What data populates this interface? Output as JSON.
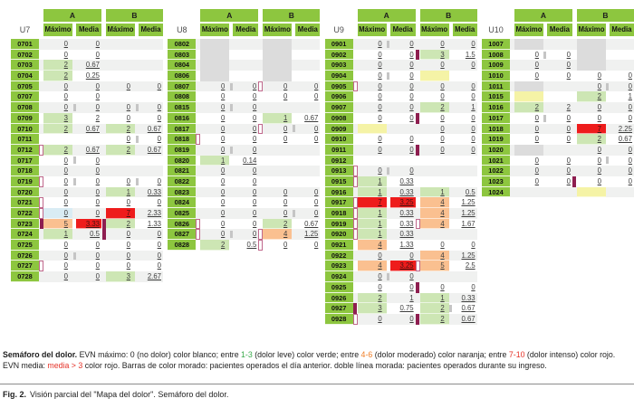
{
  "headers": {
    "group_a": "A",
    "group_b": "B",
    "maximo": "Máximo",
    "media": "Media"
  },
  "units": [
    {
      "name": "U7",
      "rows": [
        {
          "id": "0701",
          "c": [
            "0",
            "0",
            "",
            ""
          ],
          "m": "",
          "g": ""
        },
        {
          "id": "0702",
          "c": [
            "0",
            "0",
            "",
            ""
          ],
          "m": "",
          "g": ""
        },
        {
          "id": "0703",
          "c": [
            "2:g",
            "0.67",
            "",
            ""
          ],
          "m": "",
          "g": ""
        },
        {
          "id": "0704",
          "c": [
            "2:g",
            "0.25",
            "",
            ""
          ],
          "m": "",
          "g": ""
        },
        {
          "id": "0705",
          "c": [
            "0",
            "0",
            "0",
            "0"
          ],
          "m": "",
          "g": ""
        },
        {
          "id": "0707",
          "c": [
            "0",
            "0",
            "",
            ""
          ],
          "m": "",
          "g": ""
        },
        {
          "id": "0708",
          "c": [
            "0",
            "0",
            "0",
            "0"
          ],
          "m": "",
          "g": "ab"
        },
        {
          "id": "0709",
          "c": [
            "3:g",
            "2",
            "0",
            "0"
          ],
          "m": "",
          "g": ""
        },
        {
          "id": "0710",
          "c": [
            "2:g",
            "0.67",
            "2:g",
            "0.67"
          ],
          "m": "",
          "g": ""
        },
        {
          "id": "0711",
          "c": [
            "",
            "",
            "0",
            "0"
          ],
          "m": "",
          "g": "b"
        },
        {
          "id": "0712",
          "c": [
            "2:g",
            "0.67",
            "2:g",
            "0.67"
          ],
          "m": "l",
          "g": ""
        },
        {
          "id": "0717",
          "c": [
            "0",
            "0",
            "",
            ""
          ],
          "m": "",
          "g": "a"
        },
        {
          "id": "0718",
          "c": [
            "0",
            "0",
            "",
            ""
          ],
          "m": "",
          "g": ""
        },
        {
          "id": "0719",
          "c": [
            "0",
            "0",
            "0",
            "0"
          ],
          "m": "l",
          "g": "ab"
        },
        {
          "id": "0720",
          "c": [
            "0",
            "0",
            "1:g",
            "0.33"
          ],
          "m": "",
          "g": ""
        },
        {
          "id": "0721",
          "c": [
            "0",
            "0",
            "0",
            "0"
          ],
          "m": "l",
          "g": ""
        },
        {
          "id": "0722",
          "c": [
            "0:b",
            "0",
            "7:r",
            "2.33"
          ],
          "m": "l",
          "g": ""
        },
        {
          "id": "0723",
          "c": [
            "5:o",
            "3.33:r",
            "2:g",
            "1.33"
          ],
          "m": "LB",
          "g": ""
        },
        {
          "id": "0724",
          "c": [
            "1:g",
            "0.5",
            "0",
            "0"
          ],
          "m": "B",
          "g": ""
        },
        {
          "id": "0725",
          "c": [
            "0",
            "0",
            "0",
            "0"
          ],
          "m": "",
          "g": ""
        },
        {
          "id": "0726",
          "c": [
            "0",
            "0",
            "0",
            "0"
          ],
          "m": "",
          "g": "a"
        },
        {
          "id": "0727",
          "c": [
            "0",
            "0",
            "0",
            "0"
          ],
          "m": "l",
          "g": ""
        },
        {
          "id": "0728",
          "c": [
            "0",
            "0",
            "3:g",
            "2.67"
          ],
          "m": "",
          "g": ""
        }
      ]
    },
    {
      "name": "U8",
      "rows": [
        {
          "id": "0802",
          "c": [
            ":G",
            "",
            ":G",
            ""
          ],
          "m": "",
          "g": ""
        },
        {
          "id": "0803",
          "c": [
            ":G",
            "",
            ":G",
            ""
          ],
          "m": "",
          "g": ""
        },
        {
          "id": "0804",
          "c": [
            ":G",
            "",
            ":G",
            ""
          ],
          "m": "",
          "g": ""
        },
        {
          "id": "0806",
          "c": [
            ":G",
            "",
            ":G",
            ""
          ],
          "m": "",
          "g": ""
        },
        {
          "id": "0807",
          "c": [
            "0",
            "0",
            "0",
            "0"
          ],
          "m": "b",
          "g": "a"
        },
        {
          "id": "0808",
          "c": [
            "0",
            "0",
            "0",
            "0"
          ],
          "m": "",
          "g": ""
        },
        {
          "id": "0815",
          "c": [
            "0",
            "0",
            "",
            ""
          ],
          "m": "",
          "g": "a"
        },
        {
          "id": "0816",
          "c": [
            "0",
            "0",
            "1:g",
            "0.67"
          ],
          "m": "",
          "g": ""
        },
        {
          "id": "0817",
          "c": [
            "0",
            "0",
            "0",
            "0"
          ],
          "m": "b",
          "g": "b"
        },
        {
          "id": "0818",
          "c": [
            "0",
            "0",
            "0",
            "0"
          ],
          "m": "l",
          "g": ""
        },
        {
          "id": "0819",
          "c": [
            "0",
            "0",
            "",
            ""
          ],
          "m": "",
          "g": "a"
        },
        {
          "id": "0820",
          "c": [
            "1:g",
            "0.14",
            "",
            ""
          ],
          "m": "",
          "g": ""
        },
        {
          "id": "0821",
          "c": [
            "0",
            "0",
            "",
            ""
          ],
          "m": "",
          "g": ""
        },
        {
          "id": "0822",
          "c": [
            "0",
            "0",
            "",
            ""
          ],
          "m": "",
          "g": ""
        },
        {
          "id": "0823",
          "c": [
            "0",
            "0",
            "0",
            "0"
          ],
          "m": "",
          "g": ""
        },
        {
          "id": "0824",
          "c": [
            "0",
            "0",
            "0",
            "0"
          ],
          "m": "",
          "g": ""
        },
        {
          "id": "0825",
          "c": [
            "0",
            "0",
            "0",
            "0"
          ],
          "m": "",
          "g": "b"
        },
        {
          "id": "0826",
          "c": [
            "0",
            "0",
            "2:g",
            "0.67"
          ],
          "m": "l",
          "g": ""
        },
        {
          "id": "0827",
          "c": [
            "0",
            "0",
            "4:o",
            "1.25"
          ],
          "m": "lb",
          "g": "a"
        },
        {
          "id": "0828",
          "c": [
            "2:g",
            "0.5",
            "0",
            "0"
          ],
          "m": "b",
          "g": ""
        }
      ]
    },
    {
      "name": "U9",
      "rows": [
        {
          "id": "0901",
          "c": [
            "0",
            "0",
            "0",
            "0"
          ],
          "m": "",
          "g": "a"
        },
        {
          "id": "0902",
          "c": [
            "0",
            "0",
            "3:g",
            "1.5"
          ],
          "m": "B",
          "g": ""
        },
        {
          "id": "0903",
          "c": [
            "0",
            "0",
            "0",
            "0"
          ],
          "m": "",
          "g": ""
        },
        {
          "id": "0904",
          "c": [
            "0",
            "0",
            ":y",
            ""
          ],
          "m": "",
          "g": "a"
        },
        {
          "id": "0905",
          "c": [
            "0",
            "0",
            "0",
            "0"
          ],
          "m": "l",
          "g": ""
        },
        {
          "id": "0906",
          "c": [
            "0",
            "0",
            "0",
            "0"
          ],
          "m": "",
          "g": ""
        },
        {
          "id": "0907",
          "c": [
            "0",
            "0",
            "2:g",
            "1"
          ],
          "m": "",
          "g": ""
        },
        {
          "id": "0908",
          "c": [
            "0",
            "0",
            "0",
            "0"
          ],
          "m": "B",
          "g": ""
        },
        {
          "id": "0909",
          "c": [
            ":y",
            "",
            "0",
            "0"
          ],
          "m": "",
          "g": ""
        },
        {
          "id": "0910",
          "c": [
            "0",
            "0",
            "0",
            "0"
          ],
          "m": "",
          "g": ""
        },
        {
          "id": "0911",
          "c": [
            "0",
            "0",
            "0",
            "0"
          ],
          "m": "B",
          "g": ""
        },
        {
          "id": "0912",
          "c": [
            "",
            "",
            "",
            ""
          ],
          "m": "",
          "g": ""
        },
        {
          "id": "0913",
          "c": [
            "0",
            "0",
            "",
            ""
          ],
          "m": "l",
          "g": "a"
        },
        {
          "id": "0915",
          "c": [
            "1:g",
            "0.33",
            "",
            ""
          ],
          "m": "l",
          "g": ""
        },
        {
          "id": "0916",
          "c": [
            "1:g",
            "0.33",
            "1:g",
            "0.5"
          ],
          "m": "",
          "g": ""
        },
        {
          "id": "0917",
          "c": [
            "7:r",
            "3.25:r",
            "4:o",
            "1.25"
          ],
          "m": "l",
          "g": ""
        },
        {
          "id": "0918",
          "c": [
            "1:g",
            "0.33",
            "4:o",
            "1.25"
          ],
          "m": "l",
          "g": ""
        },
        {
          "id": "0919",
          "c": [
            "1:g",
            "0.33",
            "4:o",
            "1.67"
          ],
          "m": "lb",
          "g": ""
        },
        {
          "id": "0920",
          "c": [
            "1:g",
            "0.33",
            "",
            ""
          ],
          "m": "l",
          "g": ""
        },
        {
          "id": "0921",
          "c": [
            "4:o",
            "1.33",
            "0",
            "0"
          ],
          "m": "",
          "g": ""
        },
        {
          "id": "0922",
          "c": [
            "0",
            "0",
            "4:o",
            "1.25"
          ],
          "m": "",
          "g": ""
        },
        {
          "id": "0923",
          "c": [
            "4:o",
            "3.25:r",
            "5:o",
            "2.5"
          ],
          "m": "b",
          "g": ""
        },
        {
          "id": "0924",
          "c": [
            "0",
            "0",
            "",
            ""
          ],
          "m": "",
          "g": "a"
        },
        {
          "id": "0925",
          "c": [
            "0",
            "0",
            "0",
            "0"
          ],
          "m": "B",
          "g": ""
        },
        {
          "id": "0926",
          "c": [
            "2:g",
            "1",
            "1:g",
            "0.33"
          ],
          "m": "",
          "g": ""
        },
        {
          "id": "0927",
          "c": [
            "3:g",
            "0.75",
            "2:g",
            "0.67"
          ],
          "m": "L",
          "g": "b"
        },
        {
          "id": "0928",
          "c": [
            "0",
            "0",
            "2:g",
            "0.67"
          ],
          "m": "lB",
          "g": ""
        }
      ]
    },
    {
      "name": "U10",
      "rows": [
        {
          "id": "1007",
          "c": [
            ":G",
            "",
            ":G",
            ""
          ],
          "m": "",
          "g": ""
        },
        {
          "id": "1008",
          "c": [
            "0",
            "0",
            ":G",
            ""
          ],
          "m": "",
          "g": "a"
        },
        {
          "id": "1009",
          "c": [
            "0",
            "0",
            ":G",
            ""
          ],
          "m": "",
          "g": ""
        },
        {
          "id": "1010",
          "c": [
            "0",
            "0",
            "0",
            "0"
          ],
          "m": "",
          "g": ""
        },
        {
          "id": "1011",
          "c": [
            ":G",
            "",
            "0",
            "0"
          ],
          "m": "",
          "g": "b"
        },
        {
          "id": "1015",
          "c": [
            ":y",
            "",
            "2:g",
            "1"
          ],
          "m": "",
          "g": ""
        },
        {
          "id": "1016",
          "c": [
            "2:g",
            "2",
            "0",
            "0"
          ],
          "m": "",
          "g": ""
        },
        {
          "id": "1017",
          "c": [
            "0",
            "0",
            "0",
            "0"
          ],
          "m": "",
          "g": "a"
        },
        {
          "id": "1018",
          "c": [
            "0",
            "0",
            "7:r",
            "2.25"
          ],
          "m": "",
          "g": ""
        },
        {
          "id": "1019",
          "c": [
            "0",
            "0",
            "2:g",
            "0.67"
          ],
          "m": "",
          "g": ""
        },
        {
          "id": "1020",
          "c": [
            ":G",
            "",
            "0",
            "0"
          ],
          "m": "",
          "g": ""
        },
        {
          "id": "1021",
          "c": [
            "0",
            "0",
            "0",
            "0"
          ],
          "m": "",
          "g": "b"
        },
        {
          "id": "1022",
          "c": [
            "0",
            "0",
            "0",
            "0"
          ],
          "m": "",
          "g": ""
        },
        {
          "id": "1023",
          "c": [
            "0",
            "0",
            "0",
            "0"
          ],
          "m": "B",
          "g": ""
        },
        {
          "id": "1024",
          "c": [
            "",
            "",
            ":y",
            ""
          ],
          "m": "",
          "g": ""
        }
      ]
    }
  ],
  "caption": {
    "segments": [
      {
        "t": "Semáforo del dolor.",
        "b": true
      },
      {
        "t": " EVN máximo: 0 (no dolor) color blanco; entre "
      },
      {
        "t": "1-3",
        "c": "green"
      },
      {
        "t": " (dolor leve) color verde; entre "
      },
      {
        "t": "4-6",
        "c": "orange"
      },
      {
        "t": " (dolor moderado) color naranja; entre "
      },
      {
        "t": "7-10",
        "c": "red"
      },
      {
        "t": " (dolor intenso) color rojo. EVN media: "
      },
      {
        "t": "media > 3",
        "c": "red"
      },
      {
        "t": " color rojo. Barras de color morado: pacientes operados el día anterior. doble línea morada: pacientes operados durante su ingreso."
      }
    ]
  },
  "figure_caption": {
    "label": "Fig. 2.",
    "text": "Visión parcial del \"Mapa del dolor\". Semáforo del dolor."
  },
  "colors": {
    "header_green": "#8dc63f",
    "cell_green": "#cde6b4",
    "cell_orange": "#fac090",
    "cell_red": "#ee1c1c",
    "cell_yellow": "#f5f3a6",
    "cell_blue": "#d9ecf4",
    "cell_gray": "#dcdcdc",
    "bar_gray": "#c5c5c5",
    "bar_purple": "#8e1e50",
    "outline_purple": "#c0688c",
    "caption_green": "#3aaa4c",
    "caption_orange": "#f07e26",
    "caption_red": "#e53228"
  }
}
